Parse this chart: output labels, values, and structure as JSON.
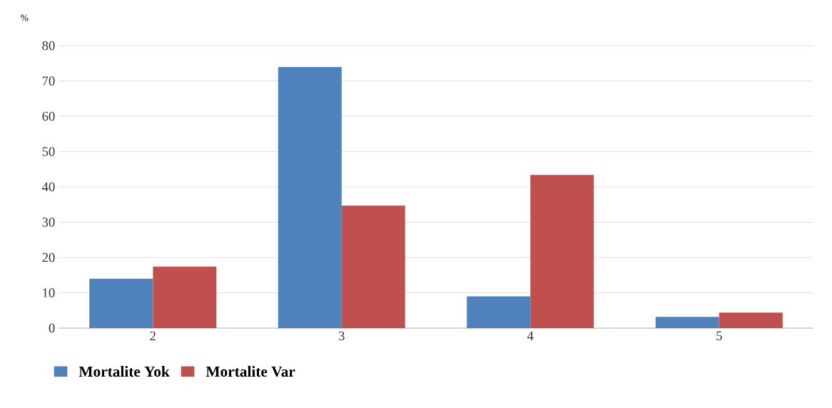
{
  "chart_data": {
    "type": "bar",
    "ylabel": "%",
    "categories": [
      "2",
      "3",
      "4",
      "5"
    ],
    "series": [
      {
        "name": "Mortalite Yok",
        "color": "#4f81bd",
        "values": [
          14,
          74,
          9,
          3.2
        ]
      },
      {
        "name": "Mortalite Var",
        "color": "#c0504d",
        "values": [
          17.4,
          34.7,
          43.4,
          4.4
        ]
      }
    ],
    "ylim": [
      0,
      80
    ],
    "yticks": [
      0,
      10,
      20,
      30,
      40,
      50,
      60,
      70,
      80
    ],
    "grid": "y",
    "legend": "bottom left"
  }
}
